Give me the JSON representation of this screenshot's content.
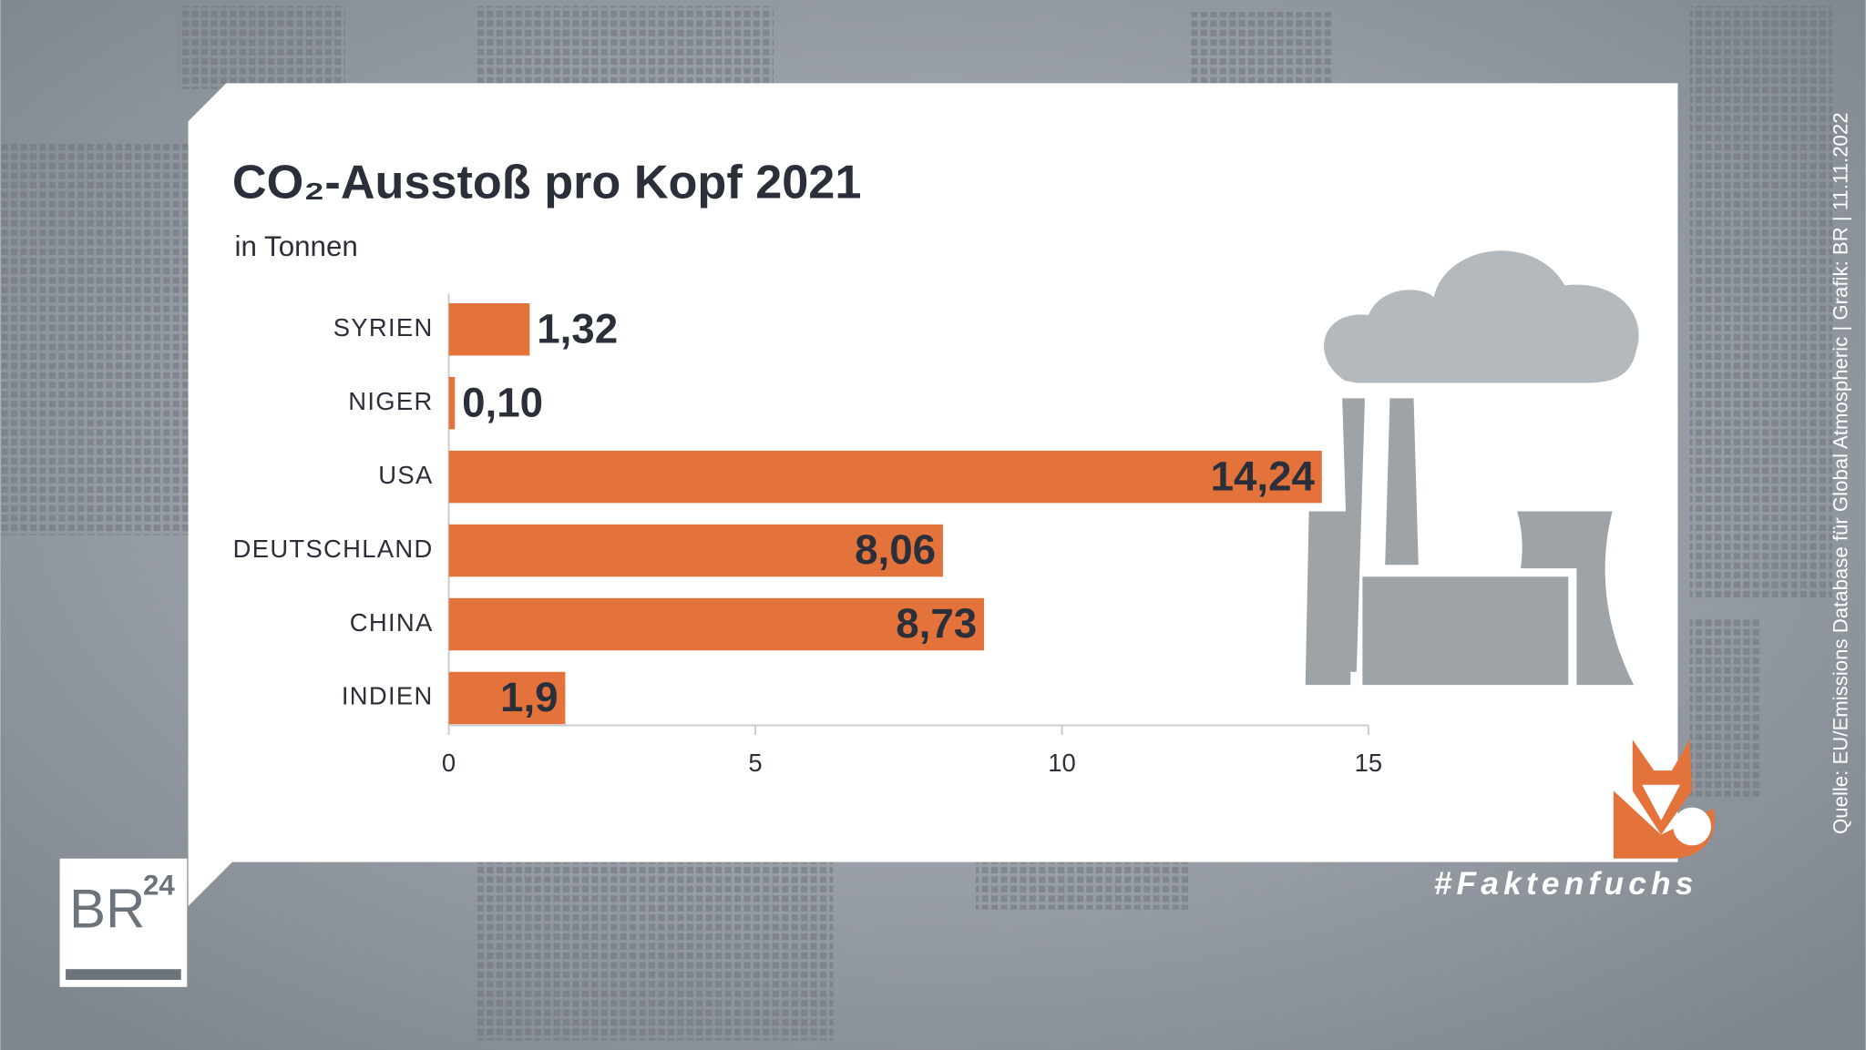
{
  "chart_data": {
    "type": "bar",
    "orientation": "horizontal",
    "title": "CO₂-Ausstoß pro Kopf 2021",
    "subtitle": "in Tonnen",
    "categories": [
      "SYRIEN",
      "NIGER",
      "USA",
      "DEUTSCHLAND",
      "CHINA",
      "INDIEN"
    ],
    "values": [
      1.32,
      0.1,
      14.24,
      8.06,
      8.73,
      1.9
    ],
    "value_labels": [
      "1,32",
      "0,10",
      "14,24",
      "8,06",
      "8,73",
      "1,9"
    ],
    "color": "#e3733a",
    "xlim": [
      0,
      15
    ],
    "xticks": [
      0,
      5,
      10,
      15
    ],
    "source": "Quelle: EU/Emissions Database für Global Atmospheric | Grafik: BR | 11.11.2022",
    "logo": {
      "name": "BR",
      "number": "24"
    },
    "hashtag": "#Faktenfuchs"
  }
}
